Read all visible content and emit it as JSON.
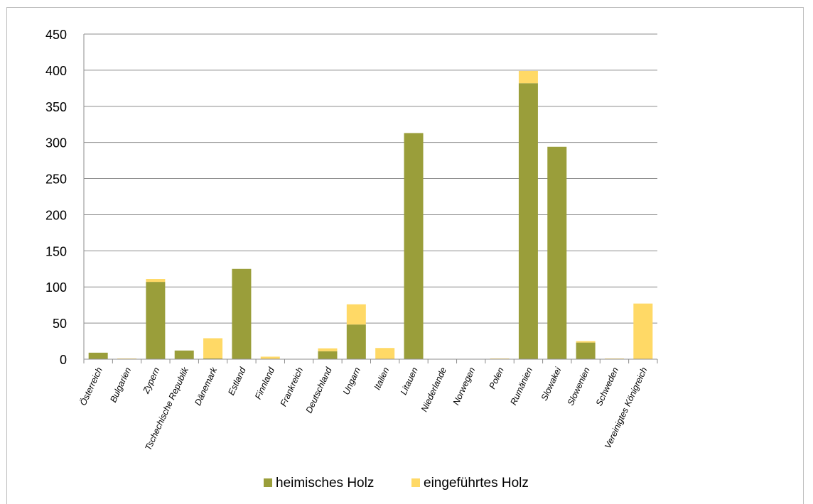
{
  "chart_data": {
    "type": "bar",
    "stacked": true,
    "categories": [
      "Österreich",
      "Bulgarien",
      "Zypern",
      "Tschechische Republik",
      "Dänemark",
      "Estland",
      "Finnland",
      "Frankreich",
      "Deutschland",
      "Ungarn",
      "Italien",
      "Litauen",
      "Niederlande",
      "Norwegen",
      "Polen",
      "Rumänien",
      "Slowakei",
      "Slowenien",
      "Schweden",
      "Vereinigtes Königreich"
    ],
    "series": [
      {
        "name": "heimisches Holz",
        "color": "#9a9e3a",
        "values": [
          9,
          0.5,
          107,
          12,
          1,
          125,
          0.5,
          0,
          11,
          48,
          0.5,
          313,
          0,
          0,
          0.5,
          382,
          294,
          23,
          0.5,
          0
        ]
      },
      {
        "name": "eingeführtes Holz",
        "color": "#ffd966",
        "values": [
          0,
          0.5,
          4,
          0,
          28,
          0,
          3,
          0,
          4,
          28,
          15,
          0,
          0,
          0,
          0.5,
          17,
          0,
          2,
          0.5,
          77
        ]
      }
    ],
    "ylim": [
      0,
      450
    ],
    "yticks": [
      "0",
      "50",
      "100",
      "150",
      "200",
      "250",
      "300",
      "350",
      "400",
      "450"
    ],
    "grid": true,
    "legend_position": "bottom",
    "title": "",
    "xlabel": "",
    "ylabel": ""
  }
}
